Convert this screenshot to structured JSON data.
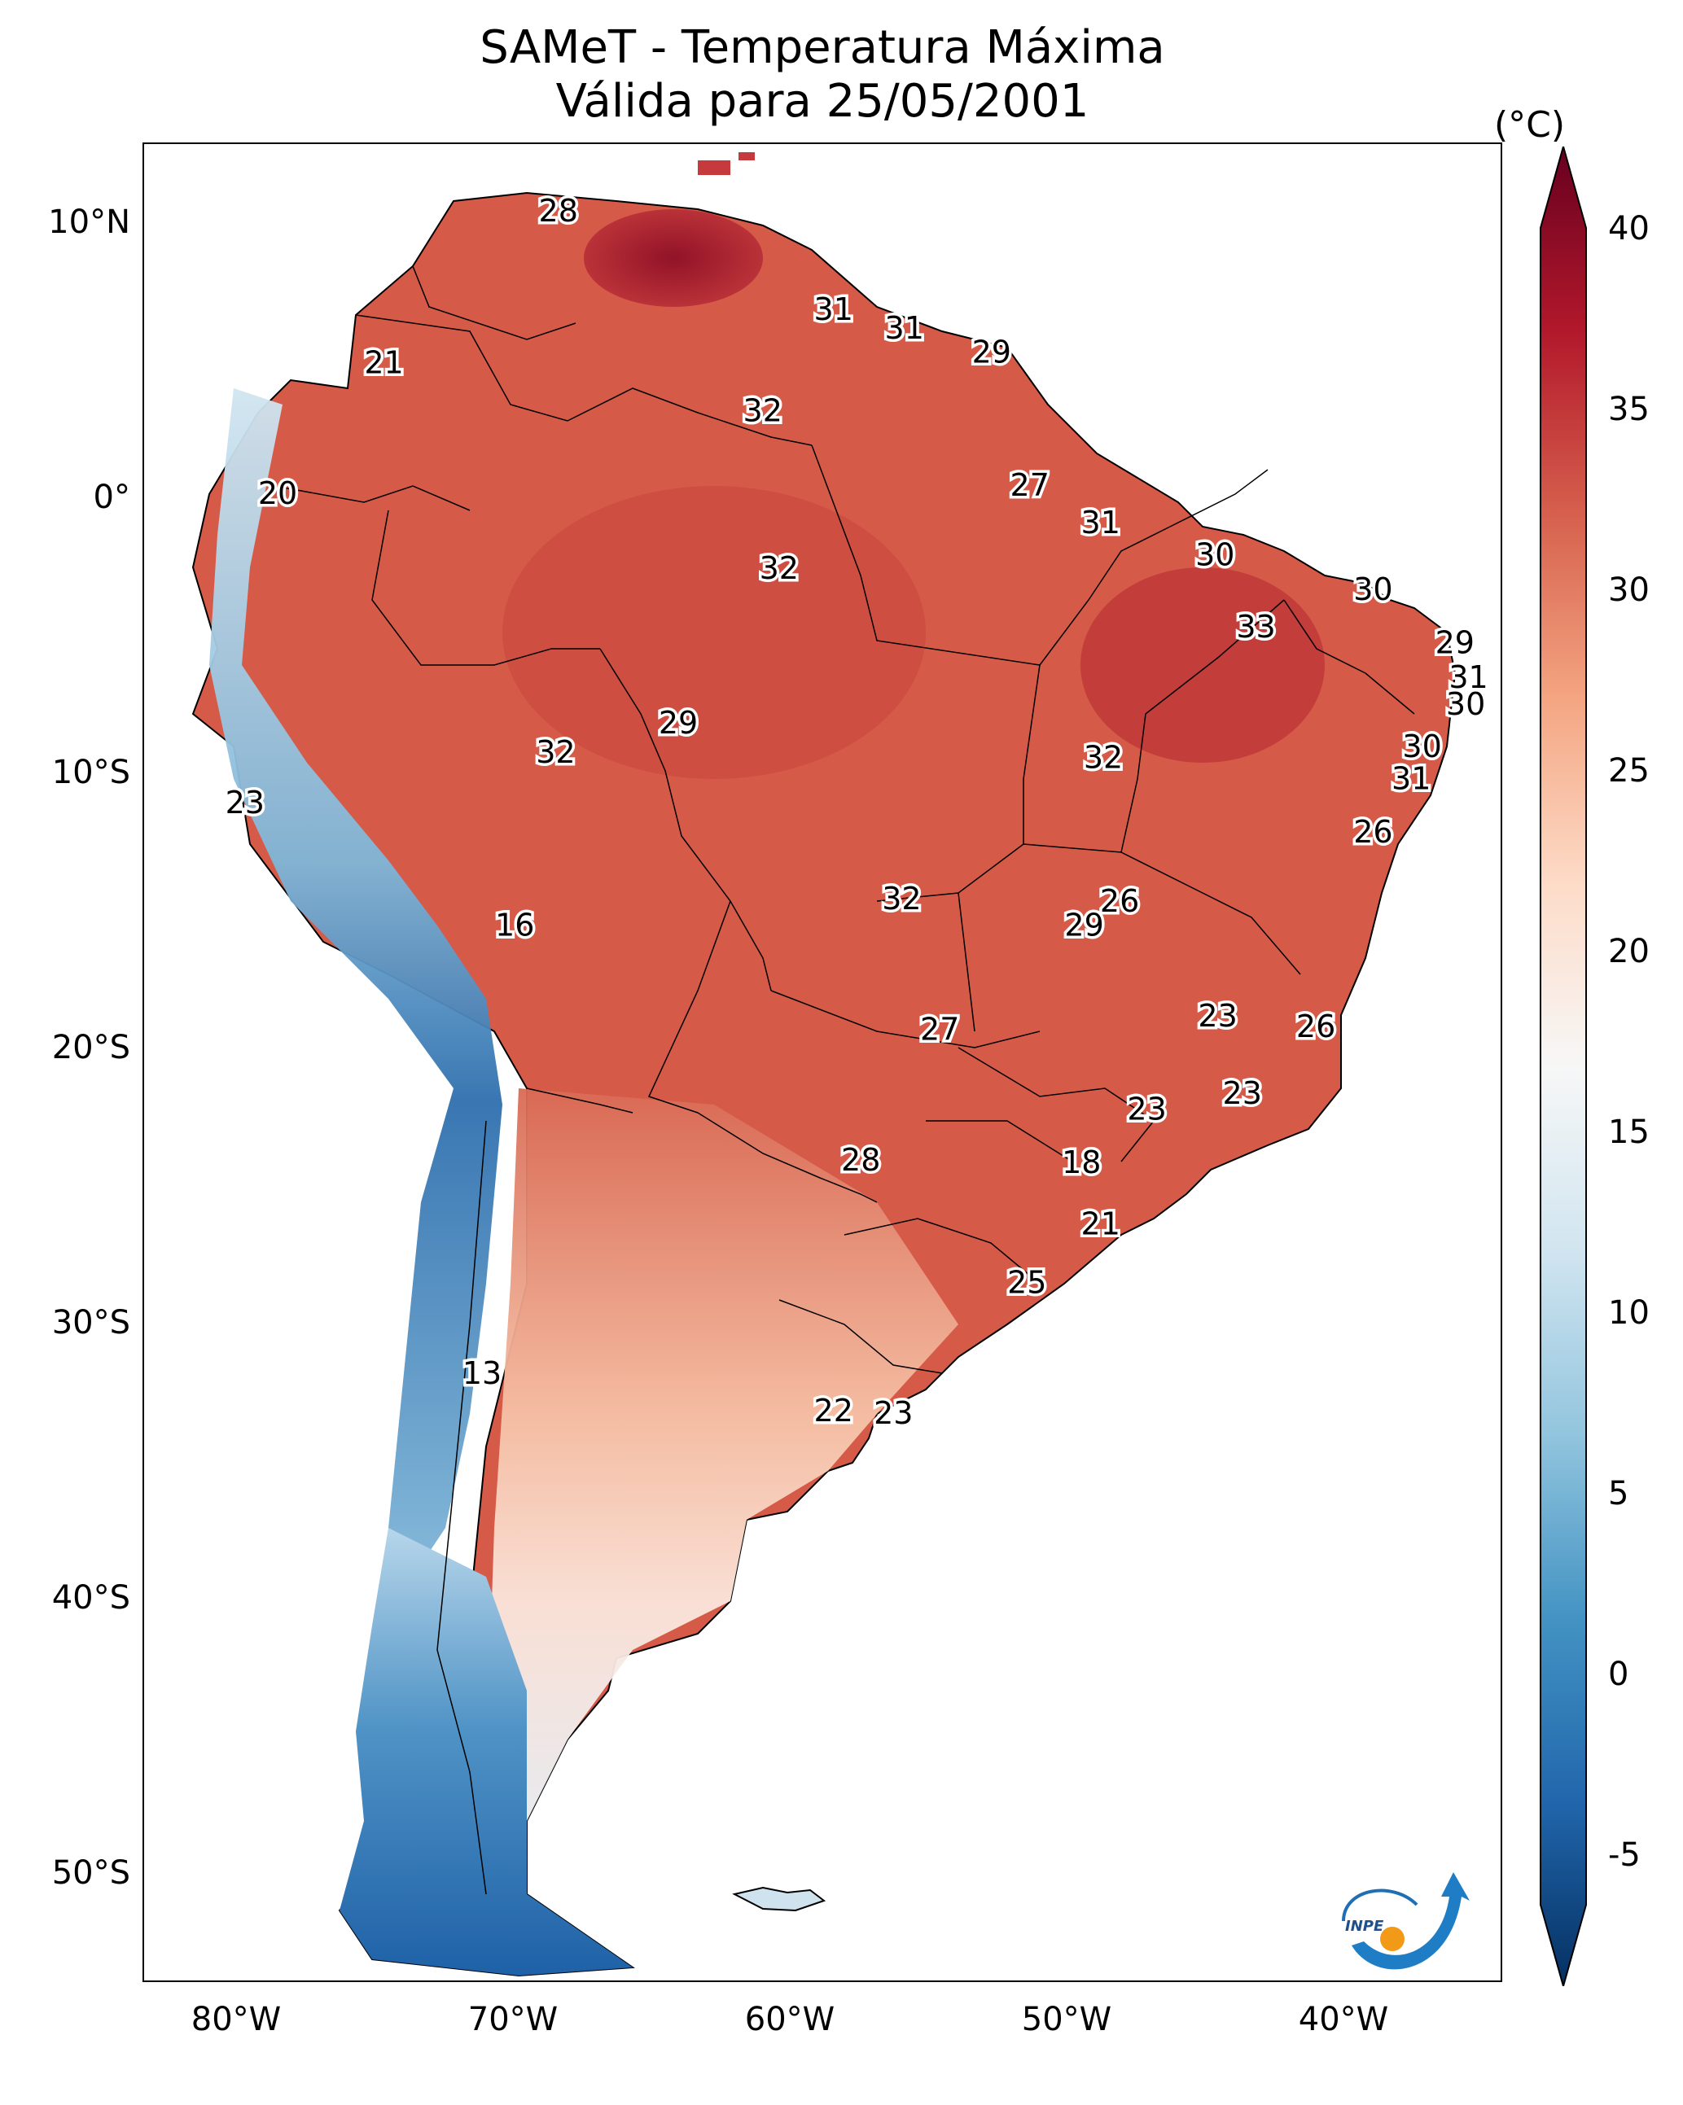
{
  "title": {
    "line1": "SAMeT - Temperatura Máxima",
    "line2": "Válida para 25/05/2001"
  },
  "axes": {
    "lat_ticks": [
      "10°N",
      "0°",
      "10°S",
      "20°S",
      "30°S",
      "40°S",
      "50°S"
    ],
    "lon_ticks": [
      "80°W",
      "70°W",
      "60°W",
      "50°W",
      "40°W"
    ]
  },
  "colorbar": {
    "unit": "(°C)",
    "ticks": [
      "40",
      "35",
      "30",
      "25",
      "20",
      "15",
      "10",
      "5",
      "0",
      "-5"
    ],
    "range": [
      -5,
      40
    ],
    "stops": [
      "#67001f",
      "#b2182b",
      "#d6604d",
      "#f4a582",
      "#fddbc7",
      "#f7f7f7",
      "#d1e5f0",
      "#92c5de",
      "#4393c3",
      "#2166ac",
      "#053061"
    ]
  },
  "map_labels": [
    {
      "text": "28",
      "lon": -67.9,
      "lat": 10.3
    },
    {
      "text": "31",
      "lon": -57.8,
      "lat": 6.6
    },
    {
      "text": "31",
      "lon": -55.2,
      "lat": 5.9
    },
    {
      "text": "29",
      "lon": -52.0,
      "lat": 5.0
    },
    {
      "text": "21",
      "lon": -74.3,
      "lat": 4.6
    },
    {
      "text": "32",
      "lon": -60.4,
      "lat": 2.8
    },
    {
      "text": "20",
      "lon": -78.2,
      "lat": -0.3
    },
    {
      "text": "27",
      "lon": -50.6,
      "lat": 0.0
    },
    {
      "text": "31",
      "lon": -48.0,
      "lat": -1.4
    },
    {
      "text": "30",
      "lon": -43.8,
      "lat": -2.6
    },
    {
      "text": "30",
      "lon": -38.0,
      "lat": -3.9
    },
    {
      "text": "32",
      "lon": -59.8,
      "lat": -3.1
    },
    {
      "text": "33",
      "lon": -42.3,
      "lat": -5.3
    },
    {
      "text": "29",
      "lon": -35.0,
      "lat": -5.9
    },
    {
      "text": "31",
      "lon": -34.5,
      "lat": -7.2
    },
    {
      "text": "30",
      "lon": -34.6,
      "lat": -8.2
    },
    {
      "text": "29",
      "lon": -63.5,
      "lat": -8.9
    },
    {
      "text": "32",
      "lon": -68.0,
      "lat": -10.0
    },
    {
      "text": "32",
      "lon": -47.9,
      "lat": -10.2
    },
    {
      "text": "30",
      "lon": -36.2,
      "lat": -9.8
    },
    {
      "text": "31",
      "lon": -36.6,
      "lat": -11.0
    },
    {
      "text": "23",
      "lon": -79.4,
      "lat": -11.9
    },
    {
      "text": "26",
      "lon": -38.0,
      "lat": -13.0
    },
    {
      "text": "32",
      "lon": -55.3,
      "lat": -15.5
    },
    {
      "text": "26",
      "lon": -47.3,
      "lat": -15.6
    },
    {
      "text": "16",
      "lon": -69.5,
      "lat": -16.5
    },
    {
      "text": "29",
      "lon": -48.6,
      "lat": -16.5
    },
    {
      "text": "23",
      "lon": -43.7,
      "lat": -19.9
    },
    {
      "text": "26",
      "lon": -40.1,
      "lat": -20.3
    },
    {
      "text": "27",
      "lon": -53.9,
      "lat": -20.4
    },
    {
      "text": "23",
      "lon": -42.8,
      "lat": -22.8
    },
    {
      "text": "23",
      "lon": -46.3,
      "lat": -23.4
    },
    {
      "text": "28",
      "lon": -56.8,
      "lat": -25.3
    },
    {
      "text": "18",
      "lon": -48.7,
      "lat": -25.4
    },
    {
      "text": "21",
      "lon": -48.0,
      "lat": -27.7
    },
    {
      "text": "25",
      "lon": -50.7,
      "lat": -29.9
    },
    {
      "text": "13",
      "lon": -70.7,
      "lat": -33.3
    },
    {
      "text": "22",
      "lon": -57.8,
      "lat": -34.7
    },
    {
      "text": "23",
      "lon": -55.6,
      "lat": -34.8
    }
  ],
  "logo": {
    "text": "INPE"
  }
}
